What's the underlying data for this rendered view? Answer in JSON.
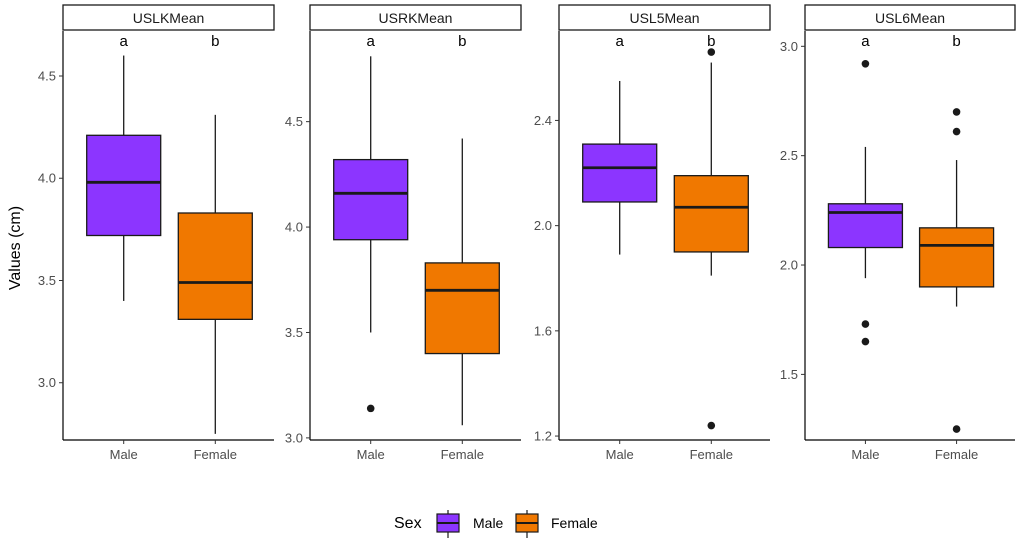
{
  "chart_data": {
    "type": "boxplot",
    "ylabel": "Values (cm)",
    "categories": [
      "Male",
      "Female"
    ],
    "legend": {
      "title": "Sex",
      "entries": [
        {
          "name": "Male",
          "color": "#8c35ff"
        },
        {
          "name": "Female",
          "color": "#f07800"
        }
      ]
    },
    "panels": [
      {
        "title": "USLKMean",
        "ylim": [
          2.72,
          4.72
        ],
        "yticks": [
          "3.0",
          "3.5",
          "4.0",
          "4.5"
        ],
        "boxes": [
          {
            "group": "Male",
            "letter": "a",
            "min": 3.4,
            "q1": 3.72,
            "median": 3.98,
            "q3": 4.21,
            "max": 4.6,
            "outliers": []
          },
          {
            "group": "Female",
            "letter": "b",
            "min": 2.75,
            "q1": 3.31,
            "median": 3.49,
            "q3": 3.83,
            "max": 4.31,
            "outliers": []
          }
        ]
      },
      {
        "title": "USRKMean",
        "ylim": [
          2.99,
          4.93
        ],
        "yticks": [
          "3.0",
          "3.5",
          "4.0",
          "4.5"
        ],
        "boxes": [
          {
            "group": "Male",
            "letter": "a",
            "min": 3.5,
            "q1": 3.94,
            "median": 4.16,
            "q3": 4.32,
            "max": 4.81,
            "outliers": [
              3.14
            ]
          },
          {
            "group": "Female",
            "letter": "b",
            "min": 3.06,
            "q1": 3.4,
            "median": 3.7,
            "q3": 3.83,
            "max": 4.42,
            "outliers": []
          }
        ]
      },
      {
        "title": "USL5Mean",
        "ylim": [
          1.185,
          2.74
        ],
        "yticks": [
          "1.2",
          "1.6",
          "2.0",
          "2.4"
        ],
        "boxes": [
          {
            "group": "Male",
            "letter": "a",
            "min": 1.89,
            "q1": 2.09,
            "median": 2.22,
            "q3": 2.31,
            "max": 2.55,
            "outliers": []
          },
          {
            "group": "Female",
            "letter": "b",
            "min": 1.81,
            "q1": 1.9,
            "median": 2.07,
            "q3": 2.19,
            "max": 2.62,
            "outliers": [
              2.66,
              1.24
            ]
          }
        ]
      },
      {
        "title": "USL6Mean",
        "ylim": [
          1.2,
          3.07
        ],
        "yticks": [
          "1.5",
          "2.0",
          "2.5",
          "3.0"
        ],
        "boxes": [
          {
            "group": "Male",
            "letter": "a",
            "min": 1.94,
            "q1": 2.08,
            "median": 2.24,
            "q3": 2.28,
            "max": 2.54,
            "outliers": [
              2.92,
              1.73,
              1.65
            ]
          },
          {
            "group": "Female",
            "letter": "b",
            "min": 1.81,
            "q1": 1.9,
            "median": 2.09,
            "q3": 2.17,
            "max": 2.48,
            "outliers": [
              2.7,
              2.61,
              1.25
            ]
          }
        ]
      }
    ]
  }
}
